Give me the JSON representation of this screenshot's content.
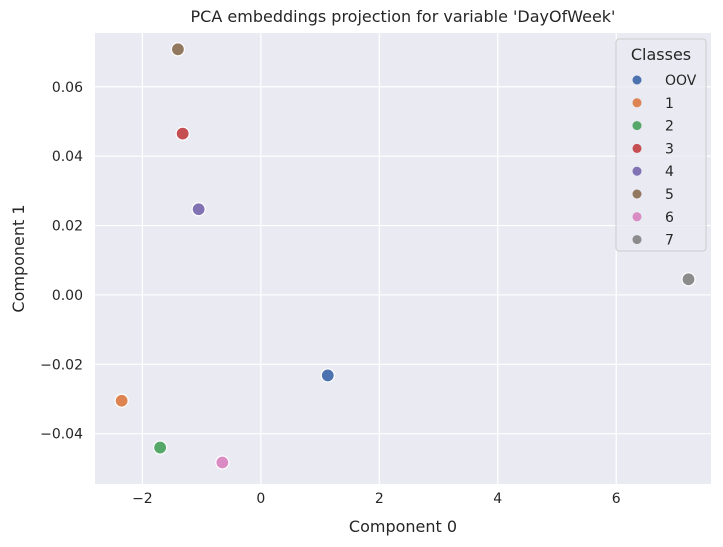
{
  "chart_data": {
    "type": "scatter",
    "title": "PCA embeddings projection for variable 'DayOfWeek'",
    "xlabel": "Component 0",
    "ylabel": "Component 1",
    "xlim": [
      -2.8,
      7.6
    ],
    "ylim": [
      -0.0545,
      0.0755
    ],
    "xticks": [
      -2,
      0,
      2,
      4,
      6
    ],
    "xtick_labels": [
      "−2",
      "0",
      "2",
      "4",
      "6"
    ],
    "yticks": [
      -0.04,
      -0.02,
      0.0,
      0.02,
      0.04,
      0.06
    ],
    "ytick_labels": [
      "−0.04",
      "−0.02",
      "0.00",
      "0.02",
      "0.04",
      "0.06"
    ],
    "grid": true,
    "legend": {
      "title": "Classes",
      "placement": "upper-right"
    },
    "series": [
      {
        "name": "OOV",
        "color": "#4c72b0",
        "x": 1.13,
        "y": -0.0232
      },
      {
        "name": "1",
        "color": "#dd8452",
        "x": -2.35,
        "y": -0.0305
      },
      {
        "name": "2",
        "color": "#55a868",
        "x": -1.7,
        "y": -0.044
      },
      {
        "name": "3",
        "color": "#c44e52",
        "x": -1.32,
        "y": 0.0465
      },
      {
        "name": "4",
        "color": "#8172b3",
        "x": -1.05,
        "y": 0.0247
      },
      {
        "name": "5",
        "color": "#937860",
        "x": -1.4,
        "y": 0.0708
      },
      {
        "name": "6",
        "color": "#da8bc3",
        "x": -0.65,
        "y": -0.0483
      },
      {
        "name": "7",
        "color": "#8c8c8c",
        "x": 7.22,
        "y": 0.0045
      }
    ]
  },
  "colors": {
    "plot_background": "#eaeaf2",
    "grid": "#ffffff",
    "text": "#262626"
  }
}
